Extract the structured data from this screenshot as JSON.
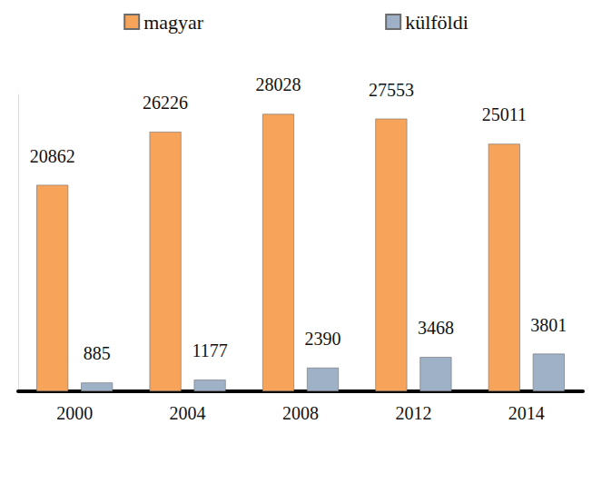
{
  "chart_data": {
    "type": "bar",
    "categories": [
      "2000",
      "2004",
      "2008",
      "2012",
      "2014"
    ],
    "series": [
      {
        "name": "magyar",
        "color": "#f7a45a",
        "values": [
          20862,
          26226,
          28028,
          27553,
          25011
        ]
      },
      {
        "name": "külföldi",
        "color": "#9fb1c6",
        "values": [
          885,
          1177,
          2390,
          3468,
          3801
        ]
      }
    ],
    "ylim": [
      0,
      30000
    ],
    "legend": "top",
    "data_labels": true,
    "tick_labels": "x",
    "grid": false
  }
}
